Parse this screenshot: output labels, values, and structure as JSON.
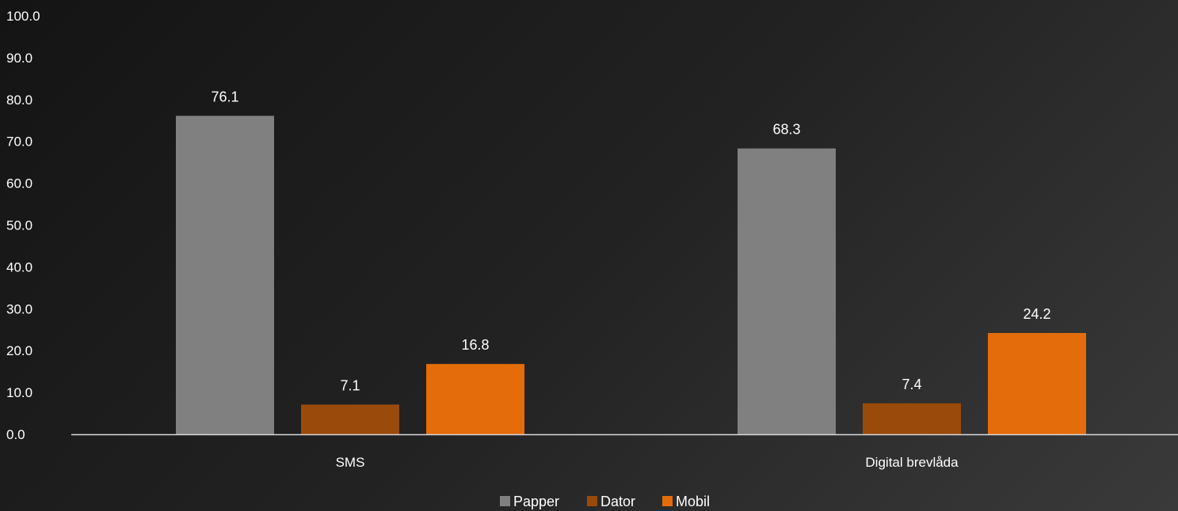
{
  "chart_data": {
    "type": "bar",
    "categories": [
      "SMS",
      "Digital brevlåda"
    ],
    "series": [
      {
        "name": "Papper",
        "values": [
          76.1,
          68.3
        ],
        "color": "#808080"
      },
      {
        "name": "Dator",
        "values": [
          7.1,
          7.4
        ],
        "color": "#9a4a0a"
      },
      {
        "name": "Mobil",
        "values": [
          16.8,
          24.2
        ],
        "color": "#e46c0a"
      }
    ],
    "ylim": [
      0,
      100
    ],
    "yticks": [
      "0.0",
      "10.0",
      "20.0",
      "30.0",
      "40.0",
      "50.0",
      "60.0",
      "70.0",
      "80.0",
      "90.0",
      "100.0"
    ],
    "data_labels": [
      [
        "76.1",
        "68.3"
      ],
      [
        "7.1",
        "7.4"
      ],
      [
        "16.8",
        "24.2"
      ]
    ],
    "legend_position": "bottom",
    "grid": false,
    "axis_color": "#d9d9d9",
    "text_color": "#ffffff"
  }
}
